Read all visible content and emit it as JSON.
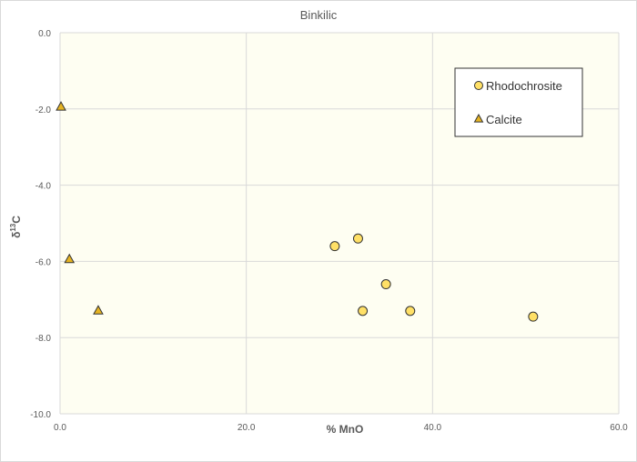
{
  "chart_data": {
    "type": "scatter",
    "title": "Binkilic",
    "xlabel": "% MnO",
    "ylabel_main": "δ",
    "ylabel_sup": "13",
    "ylabel_tail": "C",
    "xlim": [
      0,
      60
    ],
    "ylim": [
      -10,
      0
    ],
    "x_ticks": [
      0,
      20,
      40,
      60
    ],
    "y_ticks": [
      0,
      -2,
      -4,
      -6,
      -8,
      -10
    ],
    "grid": true,
    "legend_position": "top-right",
    "plot_background": "#fefef2",
    "series": [
      {
        "name": "Rhodochrosite",
        "marker": "circle",
        "color": "#ffe066",
        "edge": "#333333",
        "points": [
          {
            "x": 29.5,
            "y": -5.6
          },
          {
            "x": 32.0,
            "y": -5.4
          },
          {
            "x": 32.5,
            "y": -7.3
          },
          {
            "x": 35.0,
            "y": -6.6
          },
          {
            "x": 37.6,
            "y": -7.3
          },
          {
            "x": 50.8,
            "y": -7.45
          }
        ]
      },
      {
        "name": "Calcite",
        "marker": "triangle",
        "color": "#e6b422",
        "edge": "#333333",
        "points": [
          {
            "x": 0.1,
            "y": -1.95
          },
          {
            "x": 1.0,
            "y": -5.95
          },
          {
            "x": 4.1,
            "y": -7.3
          }
        ]
      }
    ]
  }
}
